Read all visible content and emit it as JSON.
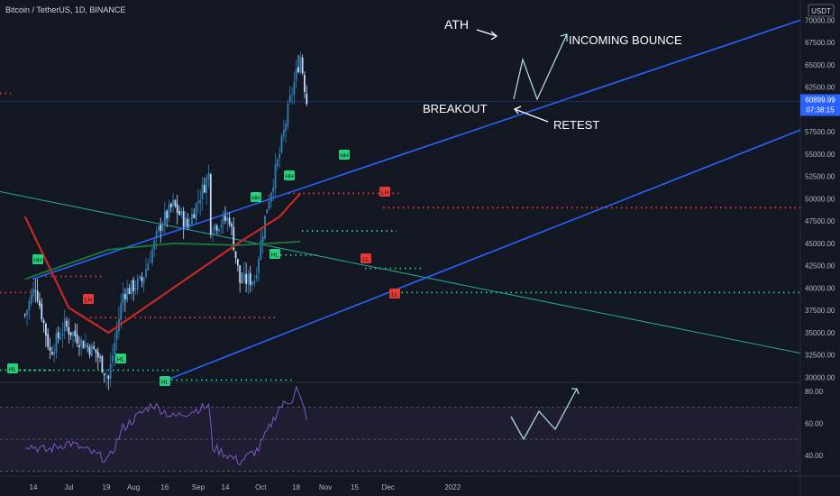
{
  "header": {
    "symbol_title": "Bitcoin / TetherUS, 1D, BINANCE",
    "currency": "USDT"
  },
  "price_axis": {
    "ticks": [
      "70000.00",
      "67500.00",
      "65000.00",
      "62500.00",
      "60000.00",
      "57500.00",
      "55000.00",
      "52500.00",
      "50000.00",
      "47500.00",
      "45000.00",
      "42500.00",
      "40000.00",
      "37500.00",
      "35000.00",
      "32500.00",
      "30000.00"
    ],
    "last_price": "60899.99",
    "countdown": "07:38:15",
    "last_price_color": "#2962ff"
  },
  "rsi_axis": {
    "ticks": [
      "80.00",
      "60.00",
      "40.00"
    ]
  },
  "time_axis": {
    "labels": [
      "14",
      "Jul",
      "19",
      "Aug",
      "16",
      "Sep",
      "14",
      "Oct",
      "18",
      "Nov",
      "15",
      "Dec",
      "2022"
    ]
  },
  "annotations": {
    "ath": "ATH",
    "incoming_bounce": "INCOMING BOUNCE",
    "breakout": "BREAKOUT",
    "retest": "RETEST"
  },
  "pivot_labels": [
    {
      "text": "HH",
      "type": "high"
    },
    {
      "text": "HH",
      "type": "high"
    },
    {
      "text": "HH",
      "type": "high"
    },
    {
      "text": "HH",
      "type": "high"
    },
    {
      "text": "LH",
      "type": "lower"
    },
    {
      "text": "LH",
      "type": "lower"
    },
    {
      "text": "LL",
      "type": "lower"
    },
    {
      "text": "LL",
      "type": "lower"
    },
    {
      "text": "HL",
      "type": "high"
    },
    {
      "text": "HL",
      "type": "high"
    },
    {
      "text": "HL",
      "type": "high"
    },
    {
      "text": "HL",
      "type": "high"
    }
  ],
  "colors": {
    "background": "#131722",
    "bull_candle": "#2f7fb5",
    "bear_candle": "#c2dcff",
    "channel_line": "#2962ff",
    "ma_red": "#c62828",
    "ma_green": "#1b7a3a",
    "trend_teal": "#26a69a",
    "rsi_line": "#7e57c2",
    "rsi_band": "#2a2240",
    "label_green": "#26d07c",
    "label_red": "#e53935"
  },
  "chart_data": {
    "type": "candlestick",
    "title": "Bitcoin / TetherUS, 1D, BINANCE",
    "ylim": [
      29000,
      71000
    ],
    "last_price": 60899.99,
    "x_period": [
      "2021-06",
      "2022-01"
    ],
    "key_levels": {
      "resistance_red_dotted": 49000,
      "support_green_dotted": 39500
    },
    "close_path": [
      {
        "date": "2021-06-10",
        "close": 37000
      },
      {
        "date": "2021-06-15",
        "close": 40300
      },
      {
        "date": "2021-06-22",
        "close": 32800
      },
      {
        "date": "2021-06-29",
        "close": 35800
      },
      {
        "date": "2021-07-07",
        "close": 34000
      },
      {
        "date": "2021-07-14",
        "close": 32800
      },
      {
        "date": "2021-07-20",
        "close": 29800
      },
      {
        "date": "2021-07-27",
        "close": 39400
      },
      {
        "date": "2021-08-05",
        "close": 40800
      },
      {
        "date": "2021-08-14",
        "close": 47100
      },
      {
        "date": "2021-08-20",
        "close": 49300
      },
      {
        "date": "2021-08-27",
        "close": 47000
      },
      {
        "date": "2021-09-06",
        "close": 52700
      },
      {
        "date": "2021-09-07",
        "close": 46900
      },
      {
        "date": "2021-09-16",
        "close": 47800
      },
      {
        "date": "2021-09-21",
        "close": 40700
      },
      {
        "date": "2021-09-28",
        "close": 41000
      },
      {
        "date": "2021-10-04",
        "close": 49200
      },
      {
        "date": "2021-10-10",
        "close": 55000
      },
      {
        "date": "2021-10-15",
        "close": 61000
      },
      {
        "date": "2021-10-20",
        "close": 66000
      },
      {
        "date": "2021-10-23",
        "close": 60900
      }
    ],
    "ma_red_path": [
      {
        "date": "2021-06-10",
        "value": 48000
      },
      {
        "date": "2021-07-01",
        "value": 37800
      },
      {
        "date": "2021-07-20",
        "value": 35000
      },
      {
        "date": "2021-08-20",
        "value": 40000
      },
      {
        "date": "2021-09-20",
        "value": 45000
      },
      {
        "date": "2021-10-10",
        "value": 48000
      },
      {
        "date": "2021-10-20",
        "value": 50600
      }
    ],
    "ma_green_path": [
      {
        "date": "2021-06-10",
        "value": 41000
      },
      {
        "date": "2021-07-20",
        "value": 44300
      },
      {
        "date": "2021-08-20",
        "value": 45000
      },
      {
        "date": "2021-09-20",
        "value": 44800
      },
      {
        "date": "2021-10-20",
        "value": 45200
      }
    ],
    "rsi": {
      "ylim": [
        27,
        85
      ],
      "overbought": 70,
      "oversold": 30,
      "midline": 50,
      "path": [
        {
          "date": "2021-06-10",
          "value": 47
        },
        {
          "date": "2021-06-20",
          "value": 43
        },
        {
          "date": "2021-07-01",
          "value": 48
        },
        {
          "date": "2021-07-20",
          "value": 37
        },
        {
          "date": "2021-07-27",
          "value": 57
        },
        {
          "date": "2021-08-10",
          "value": 72
        },
        {
          "date": "2021-08-20",
          "value": 64
        },
        {
          "date": "2021-09-06",
          "value": 71
        },
        {
          "date": "2021-09-08",
          "value": 45
        },
        {
          "date": "2021-09-21",
          "value": 36
        },
        {
          "date": "2021-09-30",
          "value": 44
        },
        {
          "date": "2021-10-10",
          "value": 70
        },
        {
          "date": "2021-10-16",
          "value": 75
        },
        {
          "date": "2021-10-18",
          "value": 82
        },
        {
          "date": "2021-10-23",
          "value": 64
        }
      ]
    }
  }
}
